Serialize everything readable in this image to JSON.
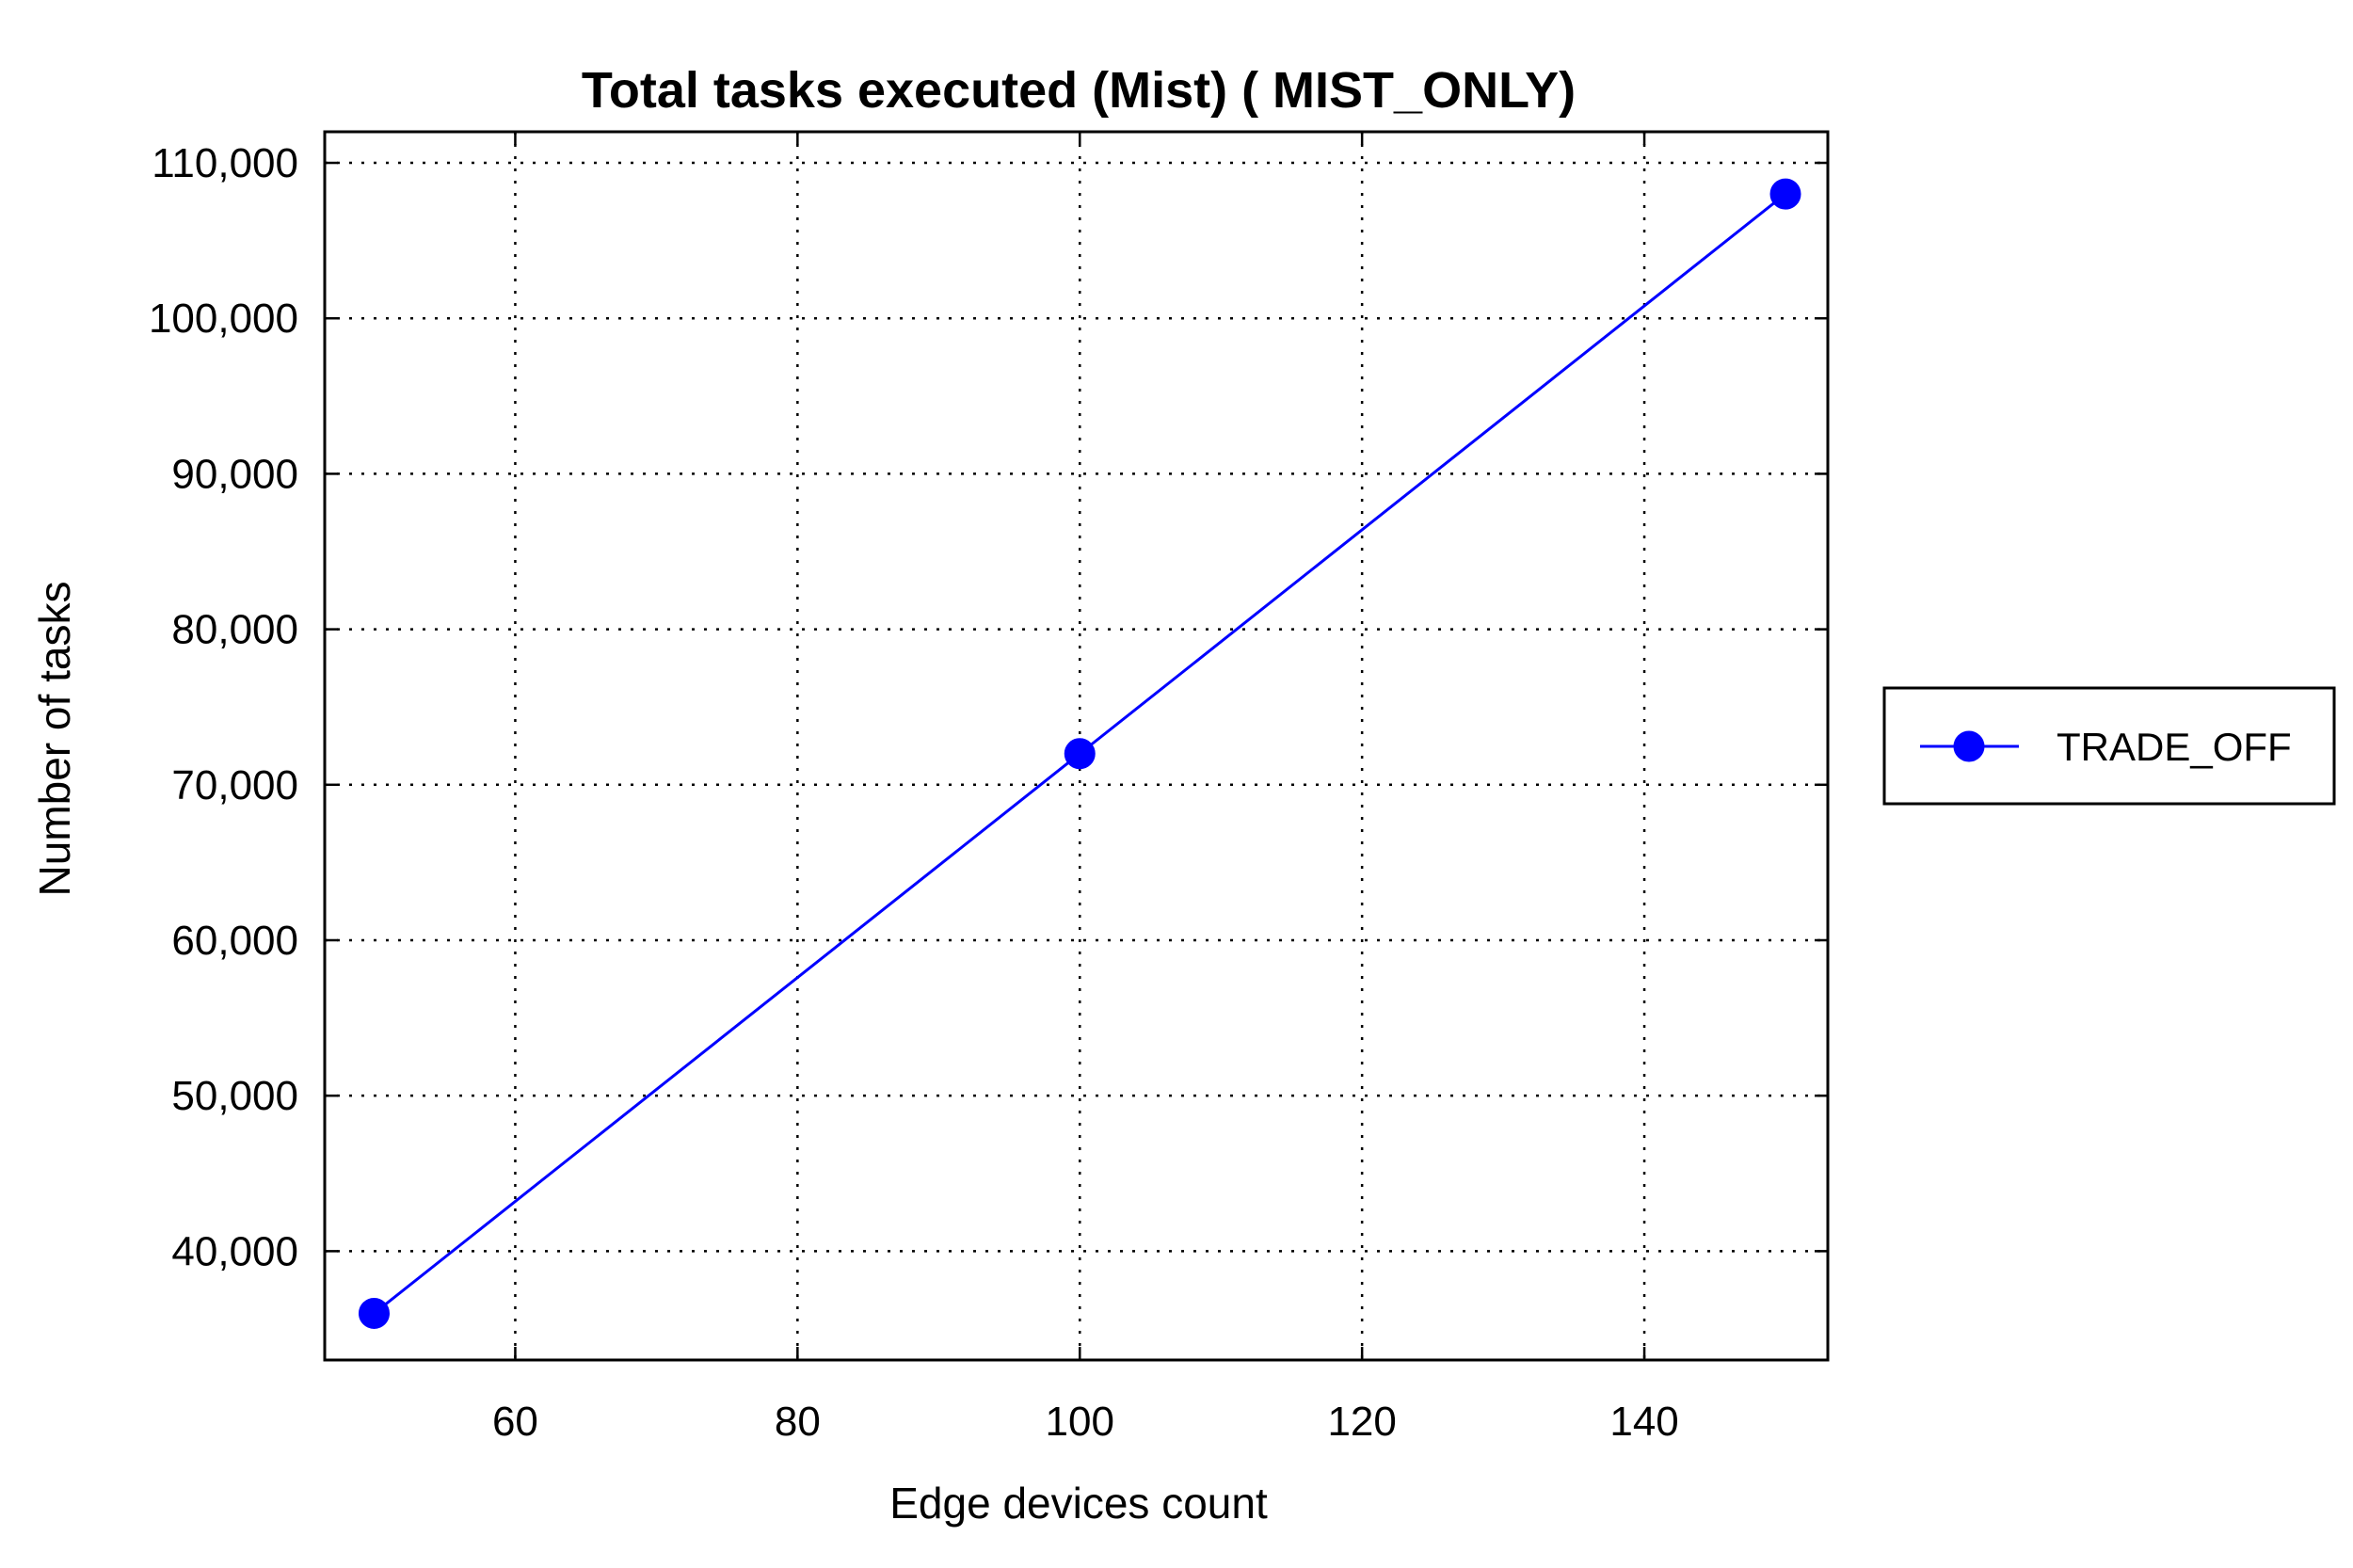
{
  "chart_data": {
    "type": "line",
    "title": "Total tasks executed (Mist) ( MIST_ONLY)",
    "xlabel": "Edge devices count",
    "ylabel": "Number of tasks",
    "xlim": [
      46.5,
      153
    ],
    "ylim": [
      33000,
      112000
    ],
    "x_ticks": [
      {
        "value": 60,
        "label": "60"
      },
      {
        "value": 80,
        "label": "80"
      },
      {
        "value": 100,
        "label": "100"
      },
      {
        "value": 120,
        "label": "120"
      },
      {
        "value": 140,
        "label": "140"
      }
    ],
    "y_ticks": [
      {
        "value": 40000,
        "label": "40,000"
      },
      {
        "value": 50000,
        "label": "50,000"
      },
      {
        "value": 60000,
        "label": "60,000"
      },
      {
        "value": 70000,
        "label": "70,000"
      },
      {
        "value": 80000,
        "label": "80,000"
      },
      {
        "value": 90000,
        "label": "90,000"
      },
      {
        "value": 100000,
        "label": "100,000"
      },
      {
        "value": 110000,
        "label": "110,000"
      }
    ],
    "grid": true,
    "legend_position": "right",
    "series": [
      {
        "name": "TRADE_OFF",
        "color": "#0000ff",
        "marker": "circle",
        "x": [
          50,
          100,
          150
        ],
        "y": [
          36000,
          72000,
          108000
        ]
      }
    ]
  }
}
